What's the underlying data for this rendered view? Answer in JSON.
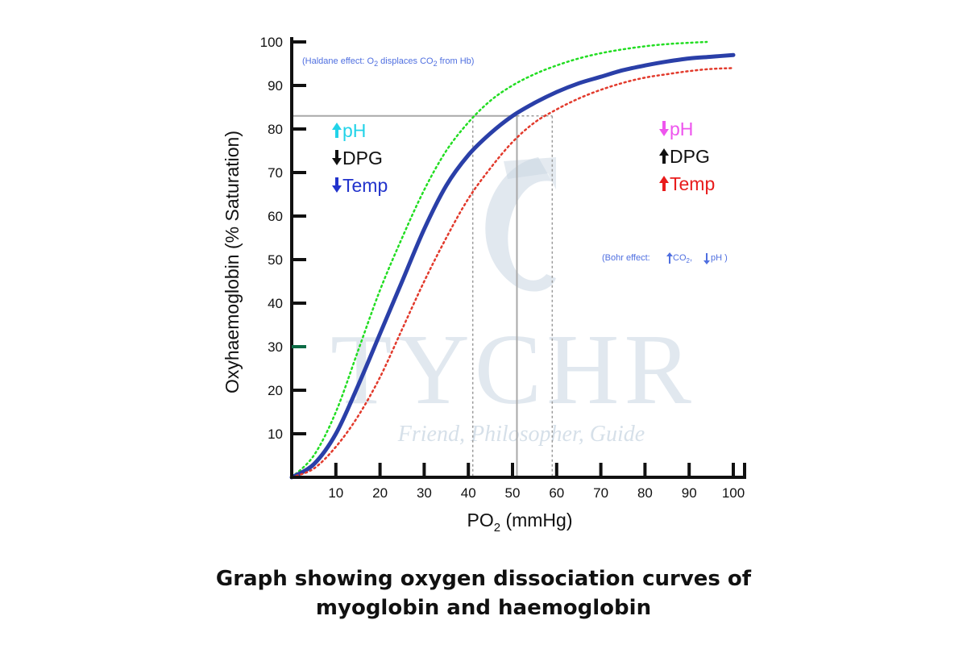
{
  "chart_data": {
    "type": "line",
    "title": "Graph showing oxygen dissociation curves of myoglobin and haemoglobin",
    "xlabel": "PO2 (mmHg)",
    "xlabel_main": "PO",
    "xlabel_sub": "2",
    "xlabel_unit": " (mmHg)",
    "ylabel": "Oxyhaemoglobin (% Saturation)",
    "xlim": [
      0,
      100
    ],
    "ylim": [
      0,
      100
    ],
    "x_ticks": [
      10,
      20,
      30,
      40,
      50,
      60,
      70,
      80,
      90,
      100
    ],
    "y_ticks": [
      10,
      20,
      30,
      40,
      50,
      60,
      70,
      80,
      90,
      100
    ],
    "series": [
      {
        "name": "Left-shifted (green, dotted)",
        "style": "dotted",
        "color": "#22dd22",
        "x": [
          0,
          5,
          10,
          15,
          20,
          25,
          30,
          35,
          40,
          45,
          50,
          55,
          60,
          65,
          70,
          75,
          80,
          85,
          90,
          94
        ],
        "y": [
          0,
          5,
          15,
          29,
          43,
          55,
          66,
          75,
          81.5,
          86.5,
          90,
          92.6,
          94.6,
          96.2,
          97.4,
          98.3,
          99,
          99.5,
          99.8,
          100
        ]
      },
      {
        "name": "Normal haemoglobin (blue, solid)",
        "style": "solid",
        "color": "#2a3fa8",
        "x": [
          0,
          5,
          10,
          15,
          20,
          25,
          30,
          35,
          40,
          45,
          50,
          55,
          60,
          65,
          70,
          75,
          80,
          85,
          90,
          95,
          100
        ],
        "y": [
          0,
          3,
          10,
          21,
          33,
          45,
          57,
          67,
          74,
          79,
          83,
          86,
          88.5,
          90.5,
          92,
          93.5,
          94.6,
          95.5,
          96.2,
          96.6,
          97
        ]
      },
      {
        "name": "Right-shifted (red, dotted)",
        "style": "dotted",
        "color": "#e23a2c",
        "x": [
          0,
          5,
          10,
          15,
          20,
          25,
          30,
          35,
          40,
          45,
          50,
          55,
          60,
          65,
          70,
          75,
          80,
          85,
          90,
          95,
          100
        ],
        "y": [
          0,
          2,
          7,
          14,
          23,
          34,
          45,
          55,
          64,
          71,
          77,
          81.5,
          84.5,
          87,
          89,
          90.6,
          91.8,
          92.6,
          93.3,
          93.8,
          94
        ]
      }
    ],
    "reference_lines": {
      "p50_x": [
        41,
        51,
        59
      ],
      "y_level": 83
    },
    "annotations": {
      "left": [
        {
          "arrow": "up",
          "label": "pH",
          "arrow_color": "#22d3e8",
          "text_color": "#22d3e8"
        },
        {
          "arrow": "down",
          "label": "DPG",
          "arrow_color": "#111111",
          "text_color": "#111111"
        },
        {
          "arrow": "down",
          "label": "Temp",
          "arrow_color": "#2233cc",
          "text_color": "#2233cc"
        }
      ],
      "right": [
        {
          "arrow": "down",
          "label": "pH",
          "arrow_color": "#ee55ee",
          "text_color": "#ee55ee"
        },
        {
          "arrow": "up",
          "label": "DPG",
          "arrow_color": "#111111",
          "text_color": "#111111"
        },
        {
          "arrow": "up",
          "label": "Temp",
          "arrow_color": "#e81c1c",
          "text_color": "#e81c1c"
        }
      ],
      "haldane": {
        "prefix": "(Haldane effect: O",
        "sub1": "2",
        "middle": " displaces CO",
        "sub2": "2",
        "suffix": " from Hb)"
      },
      "bohr": {
        "prefix": "(Bohr effect:",
        "up_part": " CO",
        "sub": "2",
        "comma": ",",
        "down_part": "pH )"
      }
    },
    "watermark": {
      "brand": "TYCHR",
      "tagline": "Friend, Philosopher, Guide"
    }
  },
  "caption": {
    "line1": "Graph showing oxygen dissociation curves of",
    "line2": "myoglobin and haemoglobin"
  },
  "colors": {
    "axis": "#111111",
    "tick30": "#0b6b45",
    "reference_solid": "#a8a8a8",
    "reference_dotted": "#9a9a9a"
  }
}
